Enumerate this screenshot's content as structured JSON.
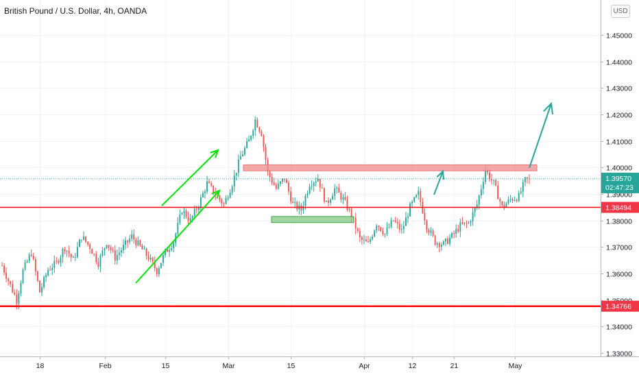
{
  "title": "British Pound / U.S. Dollar, 4h, OANDA",
  "currency_button": "USD",
  "price_tag": {
    "price": "1.39570",
    "countdown": "02:47:23",
    "color": "#26a69a"
  },
  "colors": {
    "up": "#26a69a",
    "down": "#ef5350",
    "support_line": "#ff0000",
    "zone_red": "#f28b8b",
    "zone_green": "#81c784",
    "arrow_green": "#00e600",
    "arrow_teal": "#26a69a"
  },
  "chart_data": {
    "type": "candlestick",
    "symbol": "GBPUSD",
    "timeframe": "4h",
    "source": "OANDA",
    "y_ticks": [
      "1.45000",
      "1.44000",
      "1.43000",
      "1.42000",
      "1.41000",
      "1.40000",
      "1.39000",
      "1.38000",
      "1.37000",
      "1.36000",
      "1.35000",
      "1.34000",
      "1.33000"
    ],
    "x_ticks": [
      "18",
      "Feb",
      "15",
      "Mar",
      "15",
      "Apr",
      "12",
      "21",
      "May"
    ],
    "ylim": [
      1.328,
      1.463
    ],
    "close_path": [
      [
        0,
        1.363
      ],
      [
        4,
        1.3555
      ],
      [
        7,
        1.35
      ],
      [
        10,
        1.361
      ],
      [
        14,
        1.368
      ],
      [
        18,
        1.353
      ],
      [
        22,
        1.3615
      ],
      [
        26,
        1.364
      ],
      [
        30,
        1.37
      ],
      [
        34,
        1.365
      ],
      [
        38,
        1.374
      ],
      [
        42,
        1.37
      ],
      [
        46,
        1.364
      ],
      [
        50,
        1.372
      ],
      [
        54,
        1.366
      ],
      [
        58,
        1.37
      ],
      [
        62,
        1.374
      ],
      [
        66,
        1.37
      ],
      [
        70,
        1.366
      ],
      [
        74,
        1.361
      ],
      [
        78,
        1.368
      ],
      [
        82,
        1.372
      ],
      [
        86,
        1.384
      ],
      [
        90,
        1.38
      ],
      [
        94,
        1.386
      ],
      [
        98,
        1.394
      ],
      [
        102,
        1.39
      ],
      [
        106,
        1.386
      ],
      [
        110,
        1.394
      ],
      [
        114,
        1.404
      ],
      [
        118,
        1.41
      ],
      [
        121,
        1.418
      ],
      [
        124,
        1.413
      ],
      [
        127,
        1.398
      ],
      [
        131,
        1.392
      ],
      [
        135,
        1.396
      ],
      [
        139,
        1.386
      ],
      [
        143,
        1.384
      ],
      [
        147,
        1.394
      ],
      [
        151,
        1.396
      ],
      [
        155,
        1.386
      ],
      [
        159,
        1.392
      ],
      [
        163,
        1.388
      ],
      [
        167,
        1.382
      ],
      [
        171,
        1.373
      ],
      [
        175,
        1.371
      ],
      [
        179,
        1.379
      ],
      [
        183,
        1.375
      ],
      [
        187,
        1.38
      ],
      [
        191,
        1.376
      ],
      [
        195,
        1.385
      ],
      [
        199,
        1.39
      ],
      [
        203,
        1.378
      ],
      [
        207,
        1.372
      ],
      [
        211,
        1.371
      ],
      [
        215,
        1.374
      ],
      [
        219,
        1.378
      ],
      [
        223,
        1.379
      ],
      [
        227,
        1.386
      ],
      [
        231,
        1.399
      ],
      [
        235,
        1.394
      ],
      [
        239,
        1.385
      ],
      [
        243,
        1.388
      ],
      [
        247,
        1.389
      ],
      [
        250,
        1.395
      ],
      [
        252,
        1.3957
      ]
    ],
    "horizontal_levels": [
      {
        "price": 1.38494,
        "label": "1.38494",
        "color": "#ff0000"
      },
      {
        "price": 1.34766,
        "label": "1.34766",
        "color": "#ff0000"
      }
    ],
    "last_price": 1.3957
  }
}
